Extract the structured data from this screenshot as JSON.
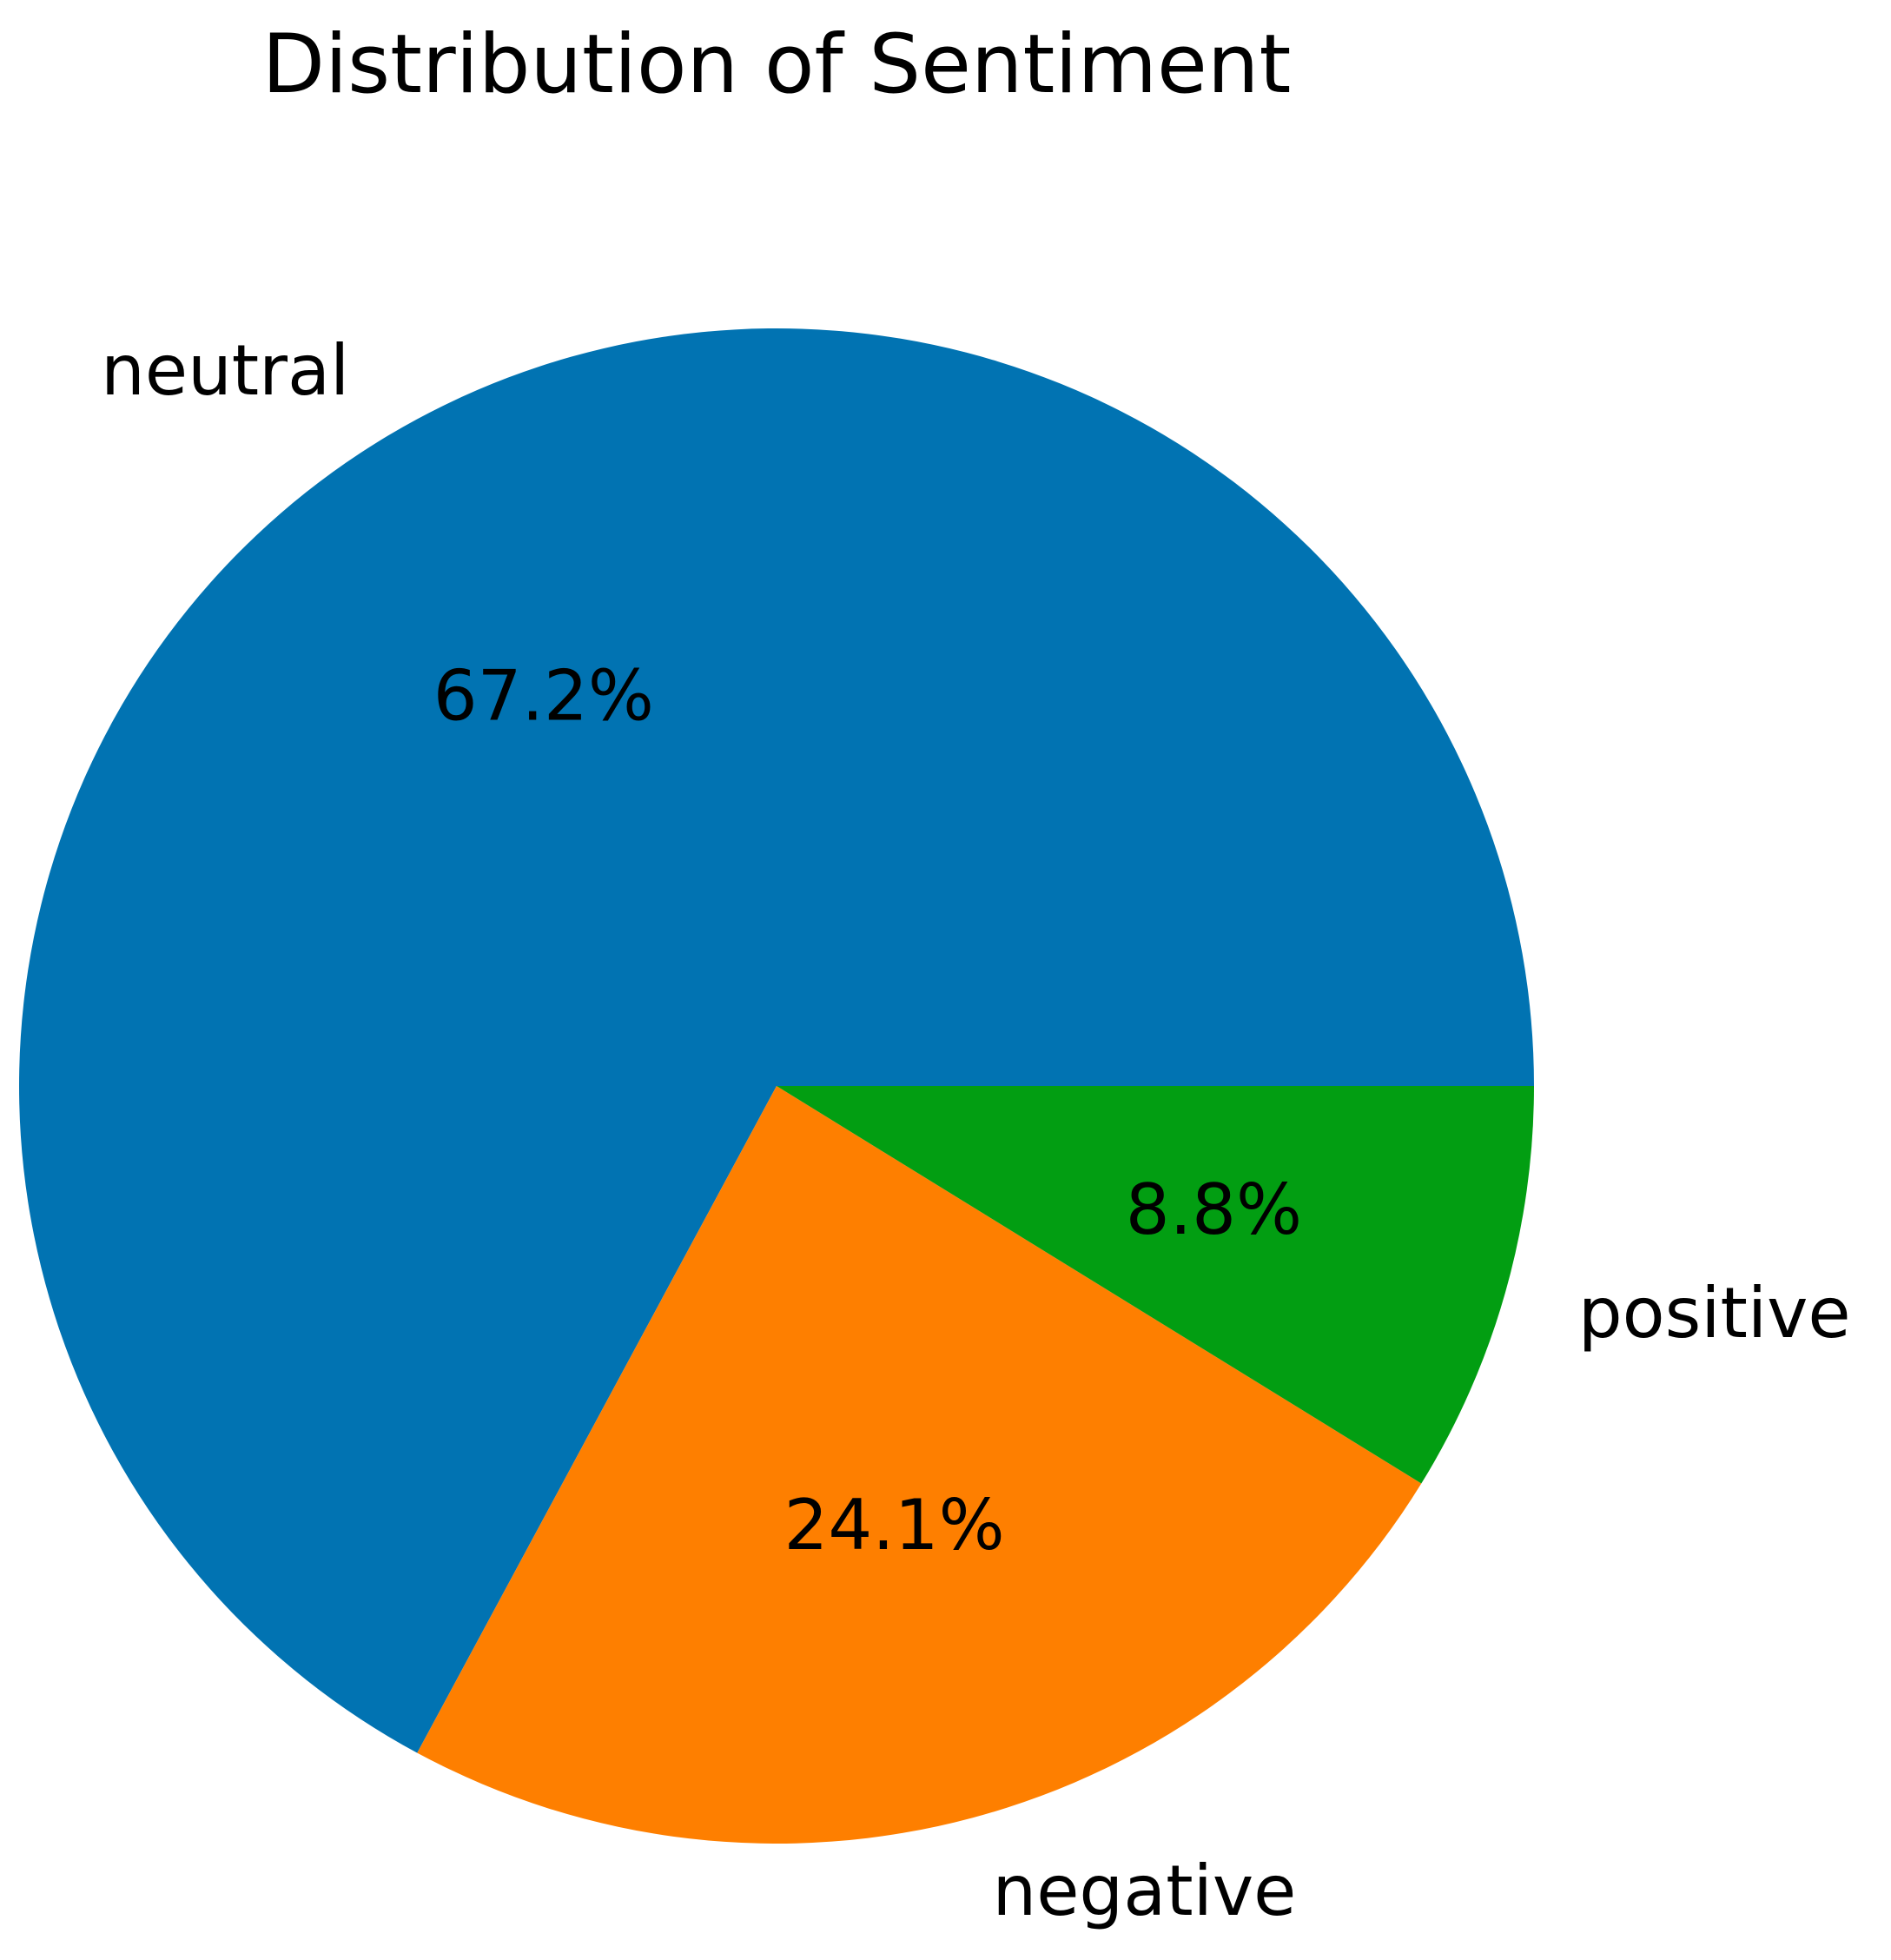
{
  "chart_data": {
    "type": "pie",
    "title": "Distribution of Sentiment",
    "start_angle": 0,
    "direction": "counterclockwise",
    "slices": [
      {
        "label": "neutral",
        "value": 67.2,
        "pct_label": "67.2%",
        "color": "#0173b2"
      },
      {
        "label": "negative",
        "value": 24.1,
        "pct_label": "24.1%",
        "color": "#fe7f00"
      },
      {
        "label": "positive",
        "value": 8.8,
        "pct_label": "8.8%",
        "color": "#029e12"
      }
    ]
  }
}
